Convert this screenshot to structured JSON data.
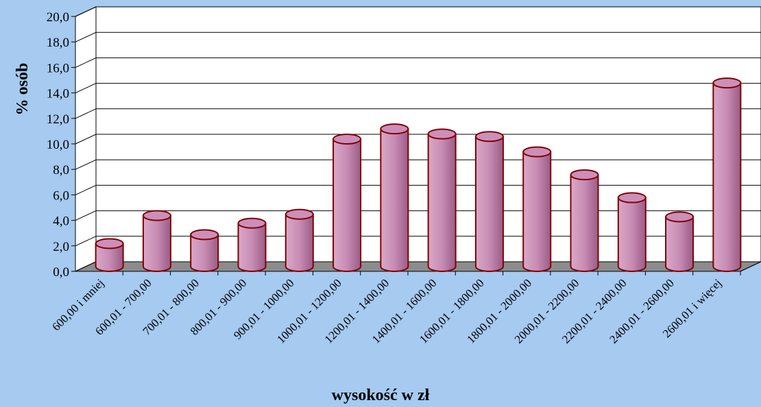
{
  "chart_data": {
    "type": "bar",
    "x_label": "wysokość w zł",
    "y_label": "% osób",
    "categories": [
      "600,00 i mniej",
      "600,01 - 700,00",
      "700,01 - 800,00",
      "800,01 - 900,00",
      "900,01 - 1000,00",
      "1000,01 - 1200,00",
      "1200,01 - 1400,00",
      "1400,01 - 1600,00",
      "1600,01 - 1800,00",
      "1800,01 - 2000,00",
      "2000,01 - 2200,00",
      "2200,01 - 2400,00",
      "2400,01 - 2600,00",
      "2600,01 i więcej"
    ],
    "values": [
      1.8,
      4.0,
      2.5,
      3.4,
      4.1,
      10.0,
      10.8,
      10.4,
      10.2,
      9.0,
      7.2,
      5.4,
      3.9,
      14.4
    ],
    "color": "#c88cb4",
    "ylim": [
      0,
      20
    ],
    "yticks": [
      {
        "value": 0,
        "label": "0,0"
      },
      {
        "value": 2,
        "label": "2,0"
      },
      {
        "value": 4,
        "label": "4,0"
      },
      {
        "value": 6,
        "label": "6,0"
      },
      {
        "value": 8,
        "label": "8,0"
      },
      {
        "value": 10,
        "label": "10,0"
      },
      {
        "value": 12,
        "label": "12,0"
      },
      {
        "value": 14,
        "label": "14,0"
      },
      {
        "value": 16,
        "label": "16,0"
      },
      {
        "value": 18,
        "label": "18,0"
      },
      {
        "value": 20,
        "label": "20,0"
      }
    ],
    "grid": true
  }
}
